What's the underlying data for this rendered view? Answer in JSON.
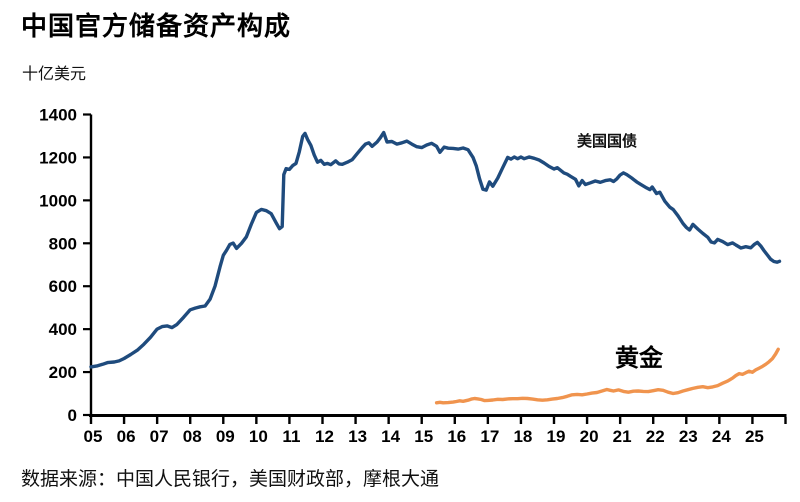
{
  "page": {
    "title": "中国官方储备资产构成",
    "unit_label": "十亿美元",
    "source_note": "数据来源：中国人民银行，美国财政部，摩根大通"
  },
  "chart_data": {
    "type": "line",
    "title": "中国官方储备资产构成",
    "ylabel": "十亿美元",
    "xlabel": "",
    "grid": false,
    "legend": "inline-labels",
    "x_axis": {
      "range": [
        2005,
        2026
      ],
      "tick_years": [
        2005,
        2006,
        2007,
        2008,
        2009,
        2010,
        2011,
        2012,
        2013,
        2014,
        2015,
        2016,
        2017,
        2018,
        2019,
        2020,
        2021,
        2022,
        2023,
        2024,
        2025,
        2026
      ],
      "tick_labels": [
        "05",
        "06",
        "07",
        "08",
        "09",
        "10",
        "11",
        "12",
        "13",
        "14",
        "15",
        "16",
        "17",
        "18",
        "19",
        "20",
        "21",
        "22",
        "23",
        "24",
        "25"
      ]
    },
    "y_axis": {
      "range": [
        0,
        1400
      ],
      "ticks": [
        0,
        200,
        400,
        600,
        800,
        1000,
        1200,
        1400
      ]
    },
    "axis_color": "#000000",
    "series": [
      {
        "name": "美国国债",
        "color": "#1F4B7D",
        "points": [
          [
            2005.0,
            224
          ],
          [
            2005.2,
            229
          ],
          [
            2005.35,
            236
          ],
          [
            2005.5,
            244
          ],
          [
            2005.7,
            247
          ],
          [
            2005.85,
            252
          ],
          [
            2006.0,
            263
          ],
          [
            2006.2,
            282
          ],
          [
            2006.4,
            302
          ],
          [
            2006.6,
            330
          ],
          [
            2006.8,
            362
          ],
          [
            2007.0,
            400
          ],
          [
            2007.15,
            412
          ],
          [
            2007.3,
            415
          ],
          [
            2007.45,
            407
          ],
          [
            2007.6,
            422
          ],
          [
            2007.8,
            455
          ],
          [
            2008.0,
            490
          ],
          [
            2008.15,
            498
          ],
          [
            2008.3,
            504
          ],
          [
            2008.45,
            508
          ],
          [
            2008.6,
            540
          ],
          [
            2008.75,
            600
          ],
          [
            2008.9,
            690
          ],
          [
            2009.0,
            744
          ],
          [
            2009.1,
            768
          ],
          [
            2009.2,
            795
          ],
          [
            2009.3,
            801
          ],
          [
            2009.4,
            776
          ],
          [
            2009.55,
            800
          ],
          [
            2009.7,
            830
          ],
          [
            2009.85,
            890
          ],
          [
            2010.0,
            944
          ],
          [
            2010.15,
            958
          ],
          [
            2010.3,
            952
          ],
          [
            2010.45,
            938
          ],
          [
            2010.6,
            895
          ],
          [
            2010.7,
            868
          ],
          [
            2010.78,
            878
          ],
          [
            2010.83,
            1120
          ],
          [
            2010.9,
            1148
          ],
          [
            2011.0,
            1144
          ],
          [
            2011.1,
            1162
          ],
          [
            2011.2,
            1172
          ],
          [
            2011.3,
            1226
          ],
          [
            2011.4,
            1298
          ],
          [
            2011.47,
            1312
          ],
          [
            2011.55,
            1284
          ],
          [
            2011.65,
            1256
          ],
          [
            2011.75,
            1212
          ],
          [
            2011.85,
            1178
          ],
          [
            2011.95,
            1186
          ],
          [
            2012.05,
            1168
          ],
          [
            2012.15,
            1172
          ],
          [
            2012.25,
            1166
          ],
          [
            2012.4,
            1184
          ],
          [
            2012.5,
            1170
          ],
          [
            2012.6,
            1168
          ],
          [
            2012.75,
            1178
          ],
          [
            2012.9,
            1190
          ],
          [
            2013.05,
            1218
          ],
          [
            2013.2,
            1246
          ],
          [
            2013.3,
            1262
          ],
          [
            2013.4,
            1268
          ],
          [
            2013.5,
            1252
          ],
          [
            2013.65,
            1272
          ],
          [
            2013.75,
            1292
          ],
          [
            2013.85,
            1316
          ],
          [
            2013.95,
            1272
          ],
          [
            2014.1,
            1274
          ],
          [
            2014.25,
            1262
          ],
          [
            2014.4,
            1268
          ],
          [
            2014.55,
            1276
          ],
          [
            2014.7,
            1262
          ],
          [
            2014.85,
            1250
          ],
          [
            2015.0,
            1246
          ],
          [
            2015.15,
            1258
          ],
          [
            2015.3,
            1266
          ],
          [
            2015.45,
            1252
          ],
          [
            2015.55,
            1224
          ],
          [
            2015.68,
            1248
          ],
          [
            2015.8,
            1243
          ],
          [
            2015.95,
            1242
          ],
          [
            2016.1,
            1239
          ],
          [
            2016.25,
            1244
          ],
          [
            2016.4,
            1236
          ],
          [
            2016.55,
            1200
          ],
          [
            2016.65,
            1160
          ],
          [
            2016.75,
            1100
          ],
          [
            2016.85,
            1052
          ],
          [
            2016.95,
            1048
          ],
          [
            2017.05,
            1086
          ],
          [
            2017.15,
            1066
          ],
          [
            2017.3,
            1104
          ],
          [
            2017.45,
            1152
          ],
          [
            2017.6,
            1200
          ],
          [
            2017.7,
            1192
          ],
          [
            2017.8,
            1202
          ],
          [
            2017.9,
            1194
          ],
          [
            2018.0,
            1202
          ],
          [
            2018.1,
            1194
          ],
          [
            2018.25,
            1202
          ],
          [
            2018.4,
            1196
          ],
          [
            2018.55,
            1188
          ],
          [
            2018.7,
            1174
          ],
          [
            2018.85,
            1158
          ],
          [
            2019.0,
            1146
          ],
          [
            2019.1,
            1152
          ],
          [
            2019.2,
            1140
          ],
          [
            2019.3,
            1128
          ],
          [
            2019.4,
            1122
          ],
          [
            2019.5,
            1112
          ],
          [
            2019.65,
            1098
          ],
          [
            2019.75,
            1068
          ],
          [
            2019.85,
            1092
          ],
          [
            2019.95,
            1074
          ],
          [
            2020.1,
            1082
          ],
          [
            2020.25,
            1090
          ],
          [
            2020.4,
            1084
          ],
          [
            2020.55,
            1092
          ],
          [
            2020.7,
            1096
          ],
          [
            2020.8,
            1088
          ],
          [
            2020.9,
            1100
          ],
          [
            2021.0,
            1118
          ],
          [
            2021.1,
            1128
          ],
          [
            2021.2,
            1120
          ],
          [
            2021.35,
            1104
          ],
          [
            2021.5,
            1086
          ],
          [
            2021.65,
            1072
          ],
          [
            2021.8,
            1058
          ],
          [
            2021.9,
            1050
          ],
          [
            2021.97,
            1062
          ],
          [
            2022.1,
            1032
          ],
          [
            2022.2,
            1038
          ],
          [
            2022.35,
            996
          ],
          [
            2022.5,
            968
          ],
          [
            2022.6,
            958
          ],
          [
            2022.75,
            928
          ],
          [
            2022.9,
            892
          ],
          [
            2023.0,
            874
          ],
          [
            2023.1,
            862
          ],
          [
            2023.2,
            888
          ],
          [
            2023.35,
            866
          ],
          [
            2023.5,
            846
          ],
          [
            2023.65,
            828
          ],
          [
            2023.75,
            806
          ],
          [
            2023.85,
            802
          ],
          [
            2023.95,
            818
          ],
          [
            2024.1,
            808
          ],
          [
            2024.25,
            794
          ],
          [
            2024.4,
            802
          ],
          [
            2024.5,
            792
          ],
          [
            2024.65,
            778
          ],
          [
            2024.8,
            784
          ],
          [
            2024.95,
            779
          ],
          [
            2025.05,
            794
          ],
          [
            2025.15,
            804
          ],
          [
            2025.25,
            788
          ],
          [
            2025.35,
            766
          ],
          [
            2025.45,
            746
          ],
          [
            2025.55,
            726
          ],
          [
            2025.65,
            715
          ],
          [
            2025.75,
            712
          ],
          [
            2025.82,
            716
          ]
        ]
      },
      {
        "name": "黄金",
        "color": "#F0944E",
        "points": [
          [
            2015.45,
            57
          ],
          [
            2015.55,
            59
          ],
          [
            2015.65,
            57
          ],
          [
            2015.8,
            58
          ],
          [
            2015.95,
            60
          ],
          [
            2016.05,
            63
          ],
          [
            2016.15,
            66
          ],
          [
            2016.25,
            64
          ],
          [
            2016.4,
            69
          ],
          [
            2016.5,
            74
          ],
          [
            2016.6,
            77
          ],
          [
            2016.7,
            75
          ],
          [
            2016.8,
            72
          ],
          [
            2016.9,
            67
          ],
          [
            2017.0,
            68
          ],
          [
            2017.15,
            70
          ],
          [
            2017.3,
            73
          ],
          [
            2017.45,
            72
          ],
          [
            2017.6,
            75
          ],
          [
            2017.75,
            76
          ],
          [
            2017.9,
            76
          ],
          [
            2018.05,
            78
          ],
          [
            2018.2,
            77
          ],
          [
            2018.35,
            74
          ],
          [
            2018.5,
            71
          ],
          [
            2018.65,
            69
          ],
          [
            2018.8,
            71
          ],
          [
            2018.95,
            74
          ],
          [
            2019.1,
            77
          ],
          [
            2019.25,
            81
          ],
          [
            2019.4,
            87
          ],
          [
            2019.55,
            94
          ],
          [
            2019.7,
            96
          ],
          [
            2019.85,
            94
          ],
          [
            2020.0,
            98
          ],
          [
            2020.15,
            102
          ],
          [
            2020.3,
            105
          ],
          [
            2020.45,
            112
          ],
          [
            2020.6,
            119
          ],
          [
            2020.7,
            115
          ],
          [
            2020.8,
            112
          ],
          [
            2020.95,
            117
          ],
          [
            2021.1,
            110
          ],
          [
            2021.25,
            106
          ],
          [
            2021.4,
            111
          ],
          [
            2021.55,
            112
          ],
          [
            2021.7,
            110
          ],
          [
            2021.85,
            109
          ],
          [
            2022.0,
            113
          ],
          [
            2022.15,
            118
          ],
          [
            2022.3,
            115
          ],
          [
            2022.45,
            106
          ],
          [
            2022.6,
            100
          ],
          [
            2022.75,
            104
          ],
          [
            2022.9,
            112
          ],
          [
            2023.05,
            118
          ],
          [
            2023.2,
            124
          ],
          [
            2023.35,
            129
          ],
          [
            2023.5,
            132
          ],
          [
            2023.65,
            127
          ],
          [
            2023.8,
            131
          ],
          [
            2023.95,
            137
          ],
          [
            2024.1,
            148
          ],
          [
            2024.25,
            158
          ],
          [
            2024.4,
            172
          ],
          [
            2024.5,
            184
          ],
          [
            2024.6,
            193
          ],
          [
            2024.7,
            189
          ],
          [
            2024.8,
            197
          ],
          [
            2024.9,
            204
          ],
          [
            2025.0,
            199
          ],
          [
            2025.1,
            210
          ],
          [
            2025.2,
            218
          ],
          [
            2025.3,
            226
          ],
          [
            2025.4,
            236
          ],
          [
            2025.5,
            248
          ],
          [
            2025.6,
            262
          ],
          [
            2025.7,
            284
          ],
          [
            2025.78,
            306
          ]
        ]
      }
    ]
  }
}
